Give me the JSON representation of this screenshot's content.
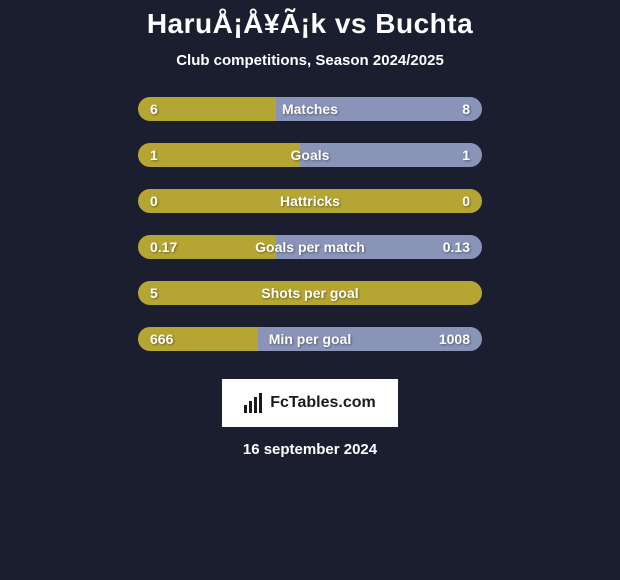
{
  "title": "HaruÅ¡Å¥Ã¡k vs Buchta",
  "subtitle": "Club competitions, Season 2024/2025",
  "footer_logo_text": "FcTables.com",
  "footer_date": "16 september 2024",
  "colors": {
    "background": "#1a1e2f",
    "bar_background": "#383c50",
    "track_default": "#8a94b8",
    "player1_gold": "#b5a633",
    "player2_blue": "#8a94b8",
    "white": "#ffffff",
    "logo_text": "#1a1a1a"
  },
  "stats": [
    {
      "label": "Matches",
      "value_left": "6",
      "value_right": "8",
      "left_pct": 40,
      "right_pct": 60,
      "left_color": "#b5a633",
      "right_color": "#8a94b8"
    },
    {
      "label": "Goals",
      "value_left": "1",
      "value_right": "1",
      "left_pct": 47,
      "right_pct": 53,
      "left_color": "#b5a633",
      "right_color": "#8a94b8"
    },
    {
      "label": "Hattricks",
      "value_left": "0",
      "value_right": "0",
      "left_pct": 100,
      "right_pct": 0,
      "left_color": "#b5a633",
      "right_color": "#8a94b8"
    },
    {
      "label": "Goals per match",
      "value_left": "0.17",
      "value_right": "0.13",
      "left_pct": 40,
      "right_pct": 60,
      "left_color": "#b5a633",
      "right_color": "#8a94b8"
    },
    {
      "label": "Shots per goal",
      "value_left": "5",
      "value_right": "",
      "left_pct": 100,
      "right_pct": 0,
      "left_color": "#b5a633",
      "right_color": "#8a94b8"
    },
    {
      "label": "Min per goal",
      "value_left": "666",
      "value_right": "1008",
      "left_pct": 35,
      "right_pct": 65,
      "left_color": "#b5a633",
      "right_color": "#8a94b8"
    }
  ]
}
